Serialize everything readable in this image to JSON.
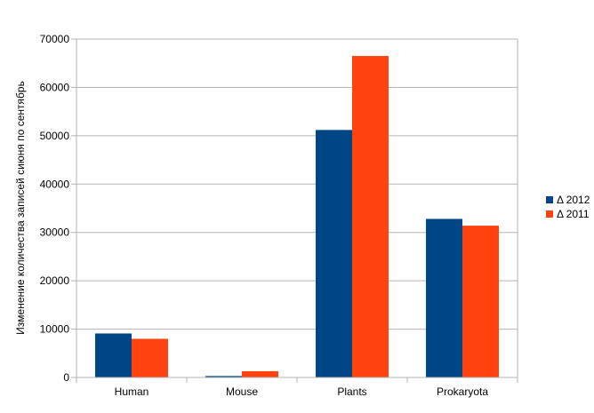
{
  "chart_data": {
    "type": "bar",
    "categories": [
      "Human",
      "Mouse",
      "Plants",
      "Prokaryota"
    ],
    "series": [
      {
        "name": "Δ 2012",
        "color": "#004586",
        "values": [
          9100,
          300,
          51200,
          32800
        ]
      },
      {
        "name": "Δ 2011",
        "color": "#ff420e",
        "values": [
          8000,
          1300,
          66500,
          31400
        ]
      }
    ],
    "ylabel": "Изменение количества записей сиюня по сентябрь",
    "ylim": [
      0,
      70000
    ],
    "yticks": [
      0,
      10000,
      20000,
      30000,
      40000,
      50000,
      60000,
      70000
    ],
    "grid": true,
    "legend_position": "right"
  }
}
